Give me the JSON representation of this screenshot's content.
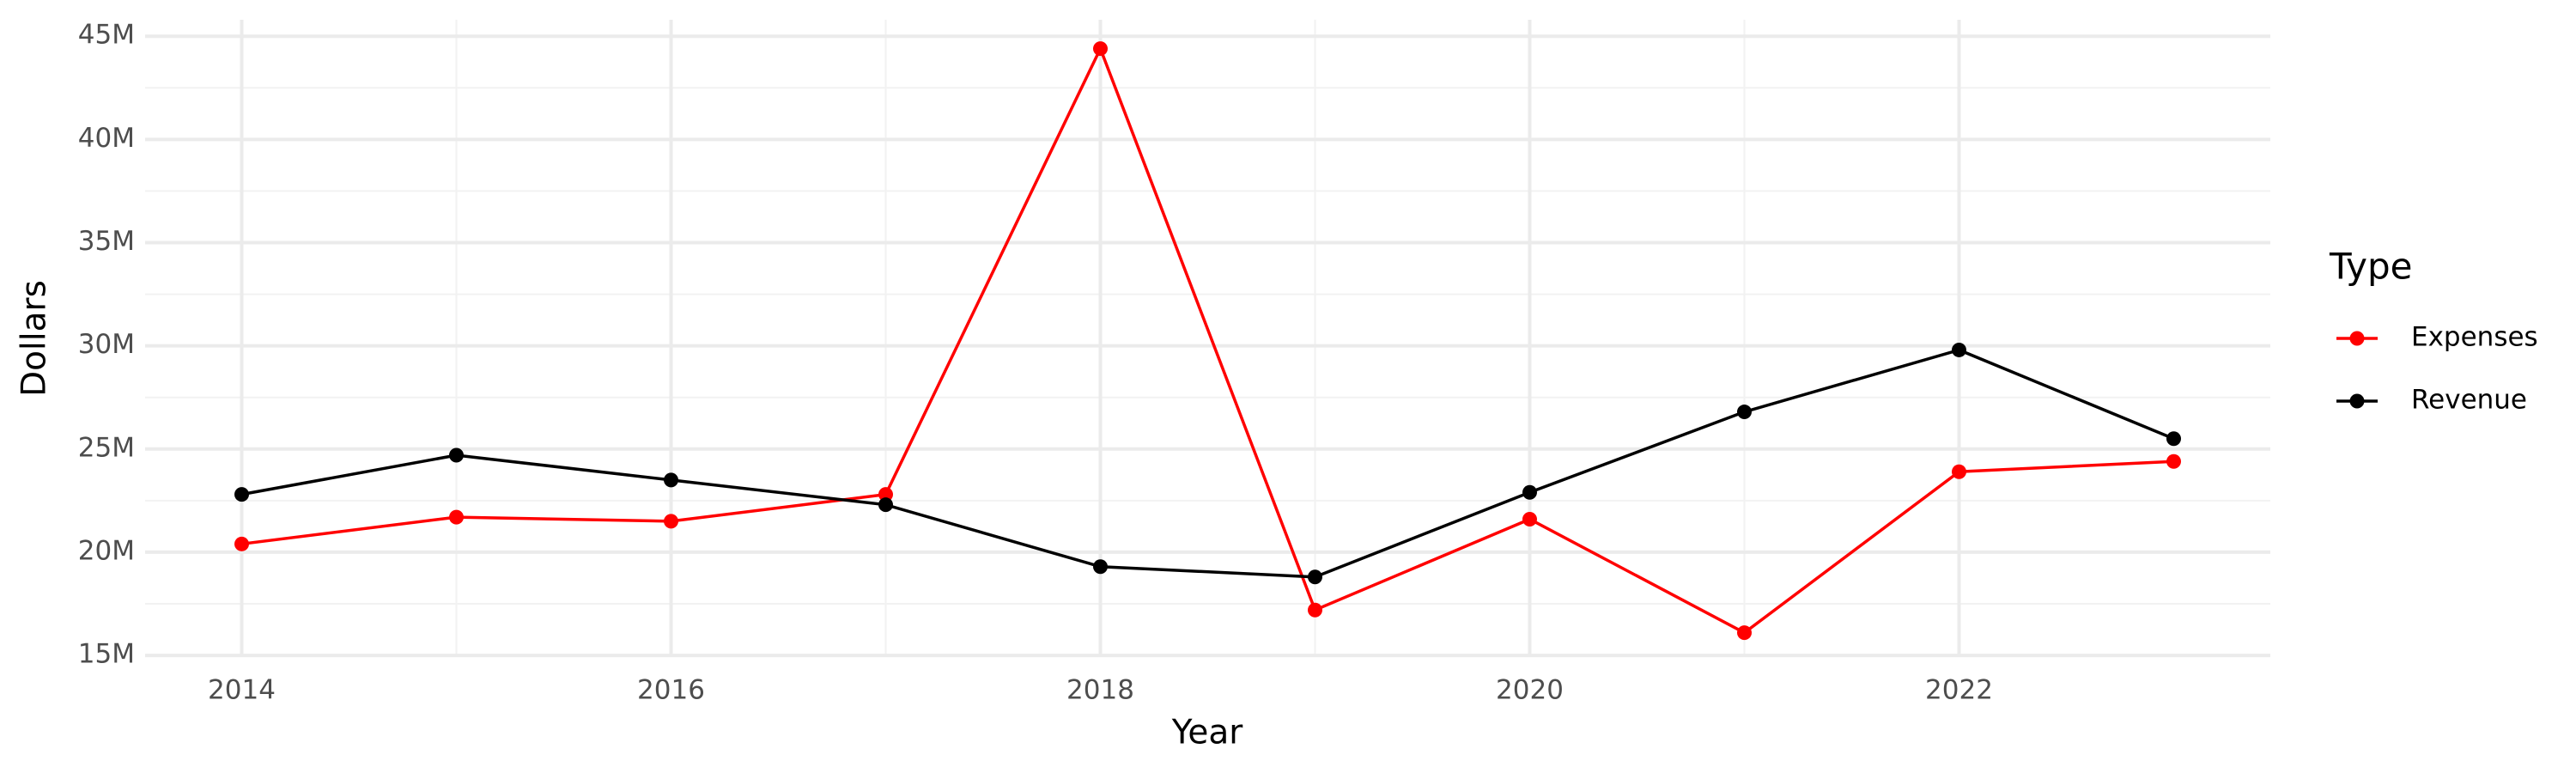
{
  "chart_data": {
    "type": "line",
    "x_label": "Year",
    "y_label": "Dollars",
    "legend_title": "Type",
    "legend": "right",
    "grid": true,
    "x": [
      2014,
      2015,
      2016,
      2017,
      2018,
      2019,
      2020,
      2021,
      2022,
      2023
    ],
    "series": [
      {
        "name": "Expenses",
        "color": "#ff0000",
        "values": [
          20400000,
          21700000,
          21500000,
          22800000,
          44400000,
          17200000,
          21600000,
          16100000,
          23900000,
          24400000
        ]
      },
      {
        "name": "Revenue",
        "color": "#000000",
        "values": [
          22800000,
          24700000,
          23500000,
          22300000,
          19300000,
          18800000,
          22900000,
          26800000,
          29800000,
          25500000
        ]
      }
    ],
    "xlim": [
      2013.55,
      2023.45
    ],
    "xticks": [
      2014,
      2016,
      2018,
      2020,
      2022
    ],
    "ylim": [
      14920000,
      45800000
    ],
    "yticks": [
      {
        "value": 15000000,
        "label": "15M"
      },
      {
        "value": 20000000,
        "label": "20M"
      },
      {
        "value": 25000000,
        "label": "25M"
      },
      {
        "value": 30000000,
        "label": "30M"
      },
      {
        "value": 35000000,
        "label": "35M"
      },
      {
        "value": 40000000,
        "label": "40M"
      },
      {
        "value": 45000000,
        "label": "45M"
      }
    ]
  }
}
